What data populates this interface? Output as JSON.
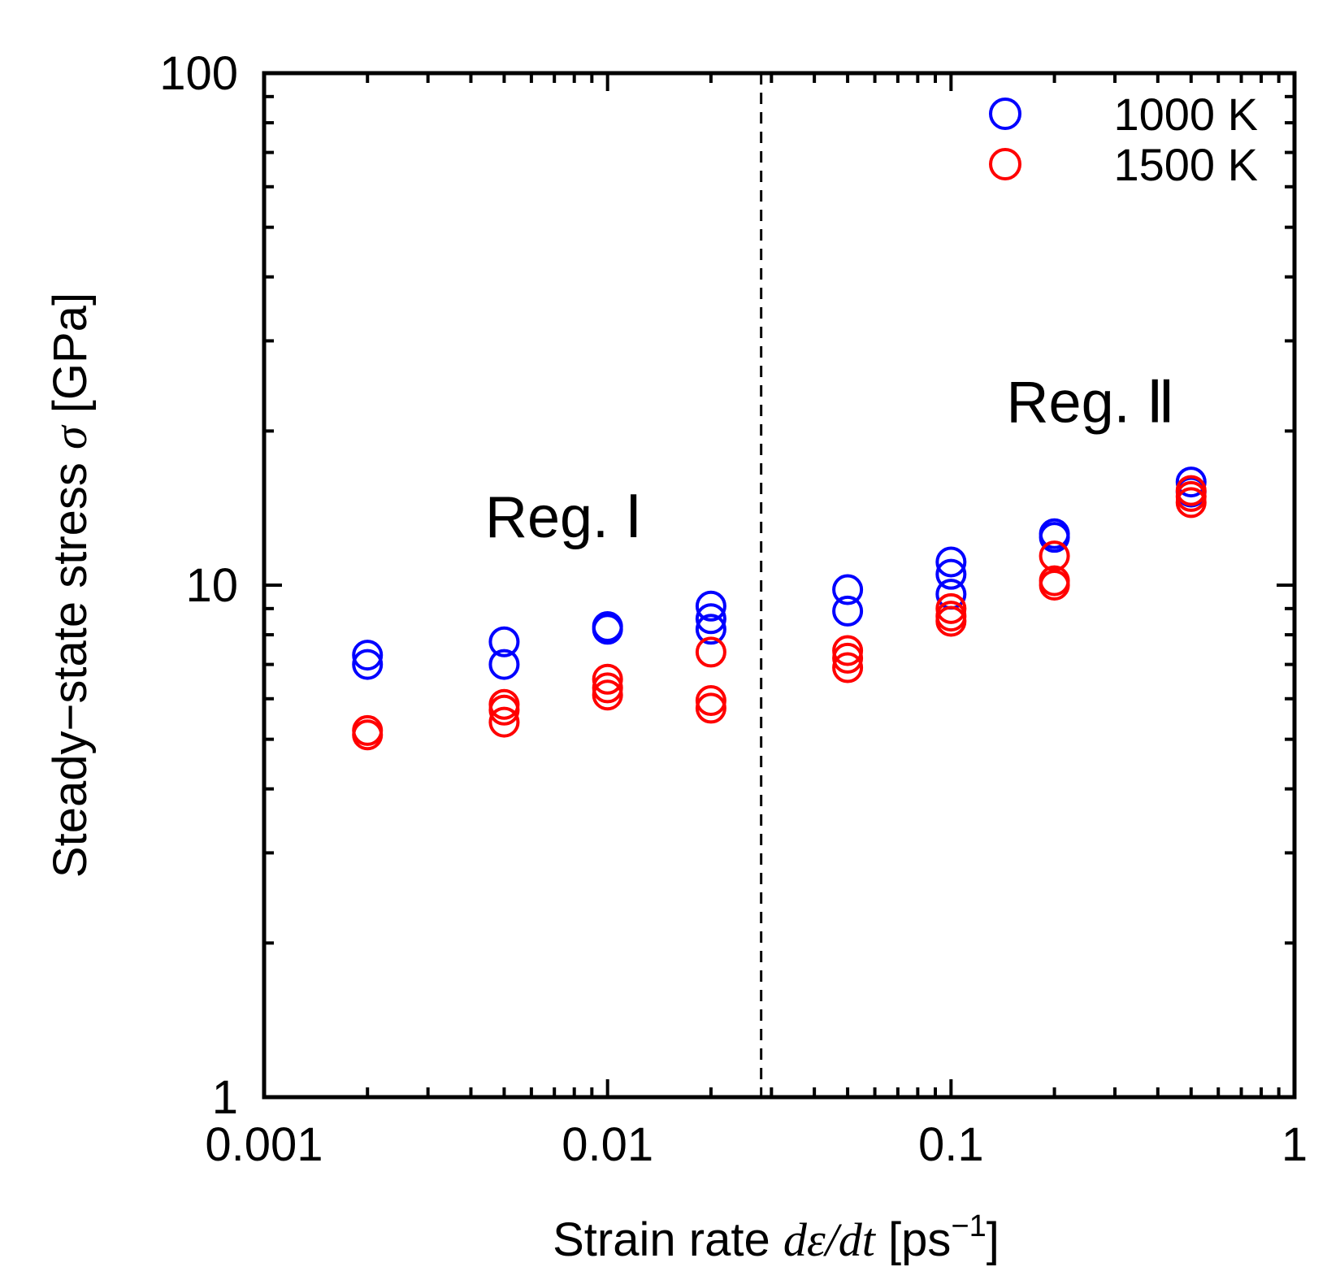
{
  "chart_data": {
    "type": "scatter",
    "xscale": "log",
    "yscale": "log",
    "xlim": [
      0.001,
      1
    ],
    "ylim": [
      1,
      100
    ],
    "xticks": [
      {
        "value": 0.001,
        "label": "0.001"
      },
      {
        "value": 0.01,
        "label": "0.01"
      },
      {
        "value": 0.1,
        "label": "0.1"
      },
      {
        "value": 1,
        "label": "1"
      }
    ],
    "yticks": [
      {
        "value": 1,
        "label": "1"
      },
      {
        "value": 10,
        "label": "10"
      },
      {
        "value": 100,
        "label": "100"
      }
    ],
    "xlabel": {
      "prefix": "Strain rate ",
      "italic": "dε/dt",
      "bracket_open": " [ps",
      "superscript": "−1",
      "bracket_close": "]"
    },
    "ylabel": {
      "prefix": "Steady−state stress ",
      "italic": "σ",
      "suffix": " [GPa]"
    },
    "vertical_line": {
      "x": 0.028,
      "style": "dashed"
    },
    "annotations": [
      {
        "text": "Reg. Ⅰ",
        "x": 0.0044,
        "y": 12.4
      },
      {
        "text": "Reg. Ⅱ",
        "x": 0.145,
        "y": 20.8
      }
    ],
    "legend_position": "top-right",
    "series": [
      {
        "name": "1000 K",
        "color": "#0000ff",
        "points": [
          {
            "x": 0.002,
            "y": 7.3
          },
          {
            "x": 0.002,
            "y": 7.0
          },
          {
            "x": 0.005,
            "y": 7.75
          },
          {
            "x": 0.005,
            "y": 7.0
          },
          {
            "x": 0.01,
            "y": 8.3
          },
          {
            "x": 0.01,
            "y": 8.2
          },
          {
            "x": 0.02,
            "y": 9.1
          },
          {
            "x": 0.02,
            "y": 8.6
          },
          {
            "x": 0.02,
            "y": 8.2
          },
          {
            "x": 0.05,
            "y": 9.8
          },
          {
            "x": 0.05,
            "y": 8.9
          },
          {
            "x": 0.1,
            "y": 11.1
          },
          {
            "x": 0.1,
            "y": 10.5
          },
          {
            "x": 0.1,
            "y": 9.6
          },
          {
            "x": 0.2,
            "y": 12.6
          },
          {
            "x": 0.2,
            "y": 12.4
          },
          {
            "x": 0.5,
            "y": 15.9
          },
          {
            "x": 0.5,
            "y": 15.2
          }
        ]
      },
      {
        "name": "1500 K",
        "color": "#ff0000",
        "points": [
          {
            "x": 0.002,
            "y": 5.2
          },
          {
            "x": 0.002,
            "y": 5.1
          },
          {
            "x": 0.005,
            "y": 5.85
          },
          {
            "x": 0.005,
            "y": 5.7
          },
          {
            "x": 0.005,
            "y": 5.4
          },
          {
            "x": 0.01,
            "y": 6.55
          },
          {
            "x": 0.01,
            "y": 6.3
          },
          {
            "x": 0.01,
            "y": 6.1
          },
          {
            "x": 0.02,
            "y": 7.4
          },
          {
            "x": 0.02,
            "y": 5.95
          },
          {
            "x": 0.02,
            "y": 5.75
          },
          {
            "x": 0.05,
            "y": 7.45
          },
          {
            "x": 0.05,
            "y": 7.2
          },
          {
            "x": 0.05,
            "y": 6.9
          },
          {
            "x": 0.1,
            "y": 9.0
          },
          {
            "x": 0.1,
            "y": 8.7
          },
          {
            "x": 0.1,
            "y": 8.5
          },
          {
            "x": 0.2,
            "y": 11.4
          },
          {
            "x": 0.2,
            "y": 10.2
          },
          {
            "x": 0.2,
            "y": 10.0
          },
          {
            "x": 0.5,
            "y": 15.3
          },
          {
            "x": 0.5,
            "y": 14.9
          },
          {
            "x": 0.5,
            "y": 14.5
          }
        ]
      }
    ]
  }
}
